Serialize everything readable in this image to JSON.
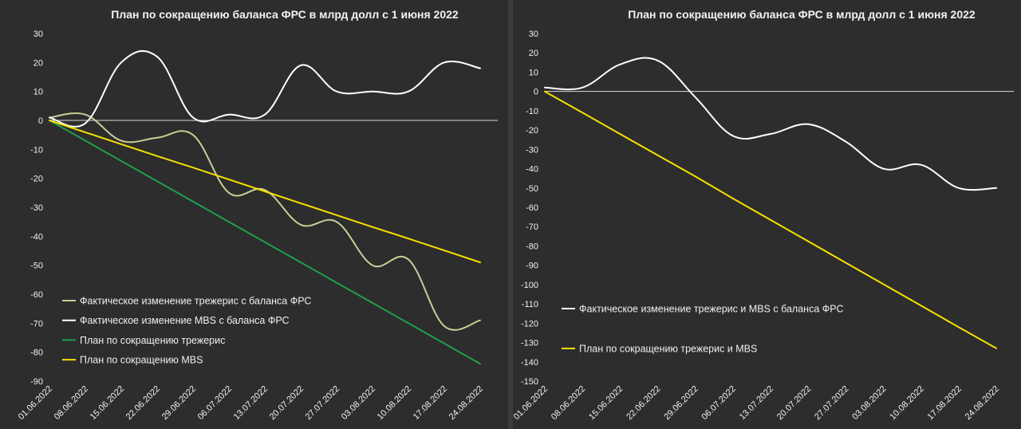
{
  "chart_data": [
    {
      "type": "line",
      "title": "План по сокращению баланса ФРС в млрд долл с 1 июня 2022",
      "xlabel": "",
      "ylabel": "",
      "ylim": [
        -90,
        30
      ],
      "yticks": [
        30,
        20,
        10,
        0,
        -10,
        -20,
        -30,
        -40,
        -50,
        -60,
        -70,
        -80,
        -90
      ],
      "categories": [
        "01.06.2022",
        "08.06.2022",
        "15.06.2022",
        "22.06.2022",
        "29.06.2022",
        "06.07.2022",
        "13.07.2022",
        "20.07.2022",
        "27.07.2022",
        "03.08.2022",
        "10.08.2022",
        "17.08.2022",
        "24.08.2022"
      ],
      "grid": false,
      "legend_position": "bottom-left",
      "series": [
        {
          "name": "Фактическое изменение трежерис с баланса ФРС",
          "color": "#c8cf96",
          "smooth": true,
          "values": [
            1,
            2,
            -7,
            -6,
            -5,
            -25,
            -24,
            -36,
            -35,
            -50,
            -48,
            -71,
            -69
          ]
        },
        {
          "name": "Фактическое изменение MBS с баланса ФРС",
          "color": "#ffffff",
          "smooth": true,
          "values": [
            1,
            -1,
            20,
            22,
            1,
            2,
            2,
            19,
            10,
            10,
            10,
            20,
            18
          ]
        },
        {
          "name": "План по сокращению трежерис",
          "color": "#1f9e4e",
          "smooth": false,
          "values": [
            0,
            -7,
            -14,
            -21,
            -28,
            -35,
            -42,
            -49,
            -56,
            -63,
            -70,
            -77,
            -84
          ]
        },
        {
          "name": "План по сокращению MBS",
          "color": "#f5e000",
          "smooth": false,
          "values": [
            0,
            -4.1,
            -8.2,
            -12.3,
            -16.3,
            -20.4,
            -24.5,
            -28.6,
            -32.7,
            -36.8,
            -40.8,
            -44.9,
            -49
          ]
        }
      ]
    },
    {
      "type": "line",
      "title": "План по сокращению баланса ФРС в млрд долл с 1 июня 2022",
      "xlabel": "",
      "ylabel": "",
      "ylim": [
        -150,
        30
      ],
      "yticks": [
        30,
        20,
        10,
        0,
        -10,
        -20,
        -30,
        -40,
        -50,
        -60,
        -70,
        -80,
        -90,
        -100,
        -110,
        -120,
        -130,
        -140,
        -150
      ],
      "categories": [
        "01.06.2022",
        "08.06.2022",
        "15.06.2022",
        "22.06.2022",
        "29.06.2022",
        "06.07.2022",
        "13.07.2022",
        "20.07.2022",
        "27.07.2022",
        "03.08.2022",
        "10.08.2022",
        "17.08.2022",
        "24.08.2022"
      ],
      "grid": false,
      "legend_position": "bottom-left",
      "series": [
        {
          "name": "Фактическое изменение трежерис и MBS с баланса ФРС",
          "color": "#ffffff",
          "smooth": true,
          "values": [
            2,
            2,
            14,
            16,
            -3,
            -23,
            -22,
            -17,
            -26,
            -40,
            -38,
            -50,
            -50
          ]
        },
        {
          "name": "План по сокращению трежерис и MBS",
          "color": "#f5e000",
          "smooth": false,
          "values": [
            0,
            -11,
            -22,
            -33,
            -44,
            -55.4,
            -66.5,
            -77.6,
            -88.7,
            -99.8,
            -110.9,
            -122,
            -133
          ]
        }
      ]
    }
  ]
}
